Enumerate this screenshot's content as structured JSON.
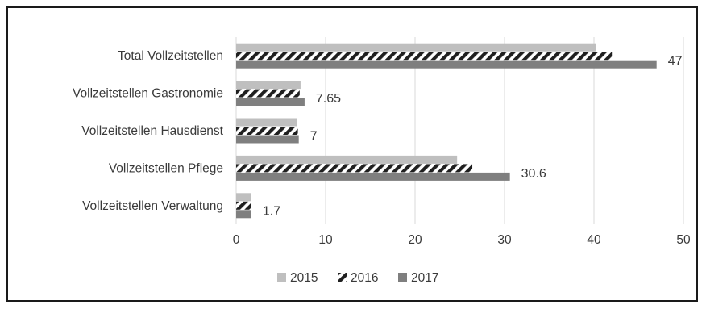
{
  "chart_data": {
    "type": "bar",
    "orientation": "horizontal",
    "categories": [
      "Total Vollzeitstellen",
      "Vollzeitstellen Gastronomie",
      "Vollzeitstellen Hausdienst",
      "Vollzeitstellen Pflege",
      "Vollzeitstellen Verwaltung"
    ],
    "series": [
      {
        "name": "2015",
        "values": [
          40.2,
          7.2,
          6.8,
          24.7,
          1.7
        ],
        "color": "#bfbfbf",
        "pattern": "solid"
      },
      {
        "name": "2016",
        "values": [
          42.0,
          7.1,
          6.9,
          26.4,
          1.7
        ],
        "color": "#1f1f1f",
        "pattern": "diagonal-hatch"
      },
      {
        "name": "2017",
        "values": [
          47,
          7.65,
          7,
          30.6,
          1.7
        ],
        "color": "#7f7f7f",
        "pattern": "solid"
      }
    ],
    "data_labels": [
      {
        "series": "2017",
        "category": "Total Vollzeitstellen",
        "text": "47"
      },
      {
        "series": "2017",
        "category": "Vollzeitstellen Gastronomie",
        "text": "7.65"
      },
      {
        "series": "2017",
        "category": "Vollzeitstellen Hausdienst",
        "text": "7"
      },
      {
        "series": "2017",
        "category": "Vollzeitstellen Pflege",
        "text": "30.6"
      },
      {
        "series": "2017",
        "category": "Vollzeitstellen Verwaltung",
        "text": "1.7"
      }
    ],
    "xlim": [
      0,
      50
    ],
    "xticks": [
      0,
      10,
      20,
      30,
      40,
      50
    ],
    "grid": "vertical",
    "legend_position": "bottom",
    "title": "",
    "xlabel": "",
    "ylabel": ""
  }
}
